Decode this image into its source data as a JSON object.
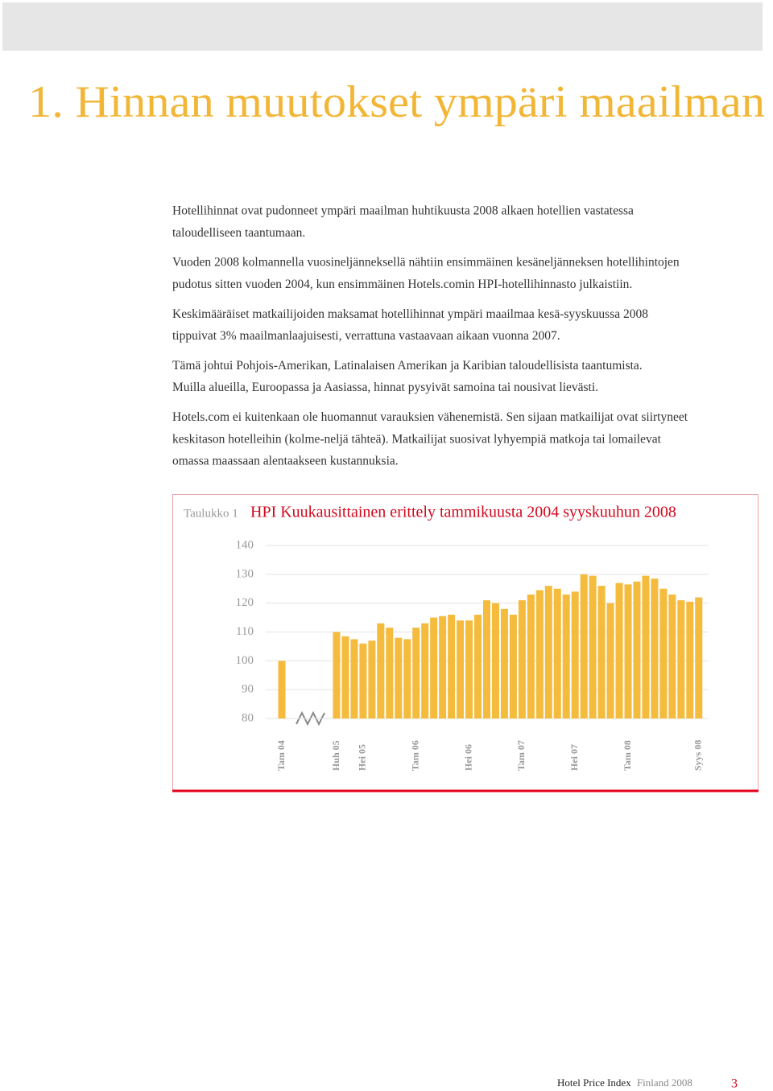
{
  "header": {
    "title": "1. Hinnan muutokset ympäri maailman"
  },
  "paragraphs": [
    [
      "Hotellihinnat ovat pudonneet ympäri maailman huhtikuusta 2008 alkaen hotellien vastatessa",
      "taloudelliseen taantumaan."
    ],
    [
      "Vuoden 2008 kolmannella vuosineljänneksellä nähtiin ensimmäinen kesäneljänneksen hotellihintojen",
      "pudotus sitten vuoden 2004, kun ensimmäinen Hotels.comin HPI-hotellihinnasto julkaistiin."
    ],
    [
      "Keskimääräiset matkailijoiden maksamat hotellihinnat ympäri maailmaa kesä-syyskuussa 2008",
      "tippuivat 3% maailmanlaajuisesti, verrattuna vastaavaan aikaan vuonna 2007."
    ],
    [
      "Tämä johtui Pohjois-Amerikan, Latinalaisen Amerikan ja Karibian taloudellisista taantumista.",
      "Muilla alueilla, Euroopassa ja Aasiassa, hinnat pysyivät samoina tai nousivat lievästi."
    ],
    [
      "Hotels.com ei kuitenkaan ole huomannut varauksien vähenemistä. Sen sijaan matkailijat ovat siirtyneet",
      "keskitason hotelleihin (kolme-neljä tähteä). Matkailijat suosivat lyhyempiä matkoja tai lomailevat",
      "omassa maassaan alentaakseen kustannuksia."
    ]
  ],
  "chart_data": {
    "type": "bar",
    "label": "Taulukko 1",
    "title": "HPI Kuukausittainen erittely tammikuusta 2004 syyskuuhun 2008",
    "categories": [
      "Tam 04",
      "Huh 05",
      null,
      null,
      "Hei 05",
      null,
      null,
      null,
      null,
      null,
      "Tam 06",
      null,
      null,
      null,
      null,
      null,
      "Hei 06",
      null,
      null,
      null,
      null,
      null,
      "Tam 07",
      null,
      null,
      null,
      null,
      null,
      "Hei 07",
      null,
      null,
      null,
      null,
      null,
      "Tam 08",
      null,
      null,
      null,
      null,
      null,
      null,
      null,
      "Syys 08"
    ],
    "values": [
      100,
      110,
      108.5,
      107.5,
      106,
      107,
      113,
      111.5,
      108,
      107.5,
      111.5,
      113,
      115,
      115.5,
      116,
      114,
      114,
      116,
      121,
      120,
      118,
      116,
      121,
      123,
      124.5,
      126,
      125,
      123,
      124,
      130,
      129.5,
      126,
      120,
      127,
      126.5,
      127.5,
      129.5,
      128.5,
      125,
      123,
      121,
      120.5,
      122
    ],
    "color": "#f4bb3d",
    "ylim": [
      80,
      140
    ],
    "yticks": [
      80,
      90,
      100,
      110,
      120,
      130,
      140
    ],
    "grid": true
  },
  "footer": {
    "brand": "Hotel Price Index",
    "edition": "Finland 2008",
    "page": "3"
  }
}
